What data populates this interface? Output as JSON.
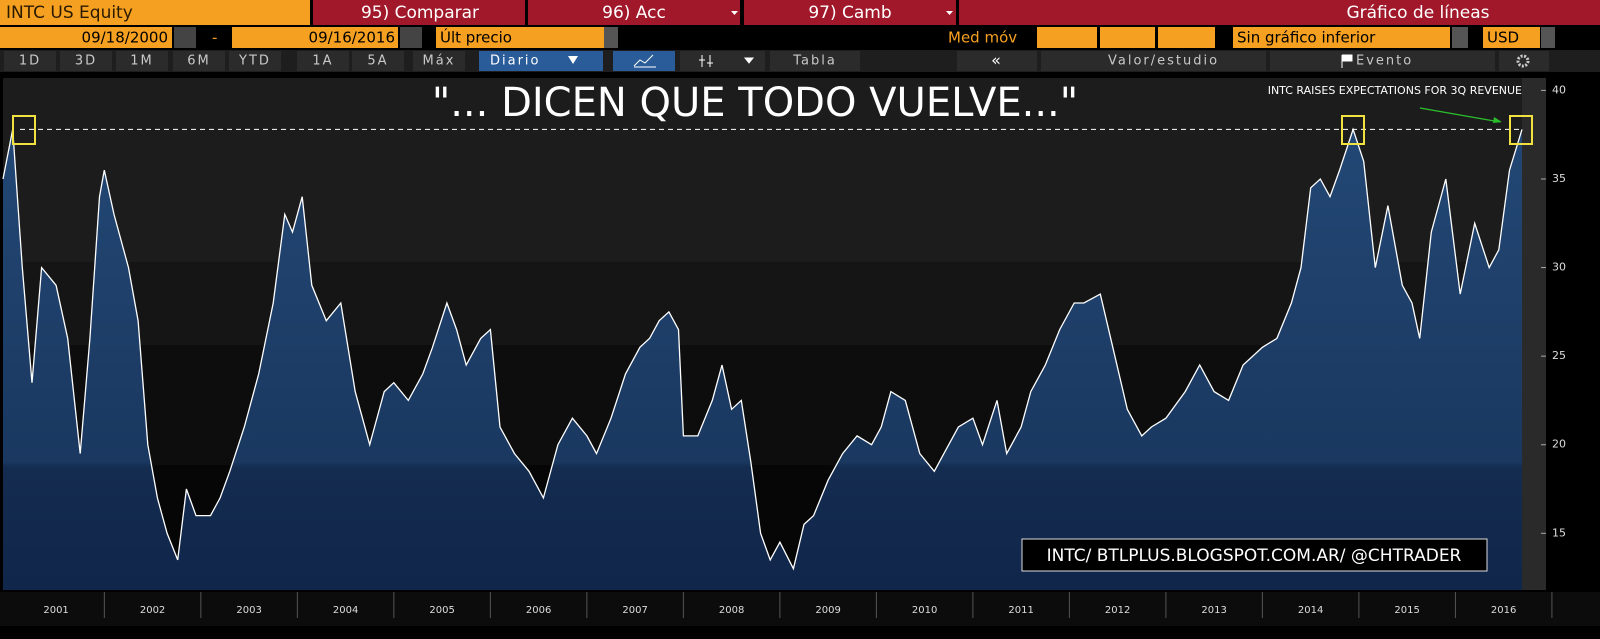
{
  "toolbar": {
    "security": "INTC US Equity",
    "buttons": [
      "95) Comparar",
      "96) Acc",
      "97) Camb"
    ],
    "chart_kind": "Gráfico de líneas",
    "start_date": "09/18/2000",
    "date_separator": "-",
    "end_date": "09/16/2016",
    "field": "Últ precio",
    "moving_average": "Med móv",
    "lower_chart": "Sin gráfico inferior",
    "currency": "USD",
    "periods": [
      "1D",
      "3D",
      "1M",
      "6M",
      "YTD",
      "1A",
      "5A",
      "Máx"
    ],
    "frequency": "Diario",
    "table": "Tabla",
    "back": "«",
    "value_study": "Valor/estudio",
    "event": "Evento"
  },
  "chart_data": {
    "type": "line",
    "title": "\"... DICEN QUE TODO VUELVE...\"",
    "annotation": "INTC RAISES EXPECTATIONS FOR 3Q REVENUE",
    "watermark": "INTC/ BTLPLUS.BLOGSPOT.COM.AR/ @CHTRADER",
    "x": [
      2000.95,
      2001.05,
      2001.15,
      2001.25,
      2001.35,
      2001.5,
      2001.62,
      2001.75,
      2001.85,
      2001.95,
      2002.0,
      2002.1,
      2002.25,
      2002.35,
      2002.45,
      2002.55,
      2002.65,
      2002.76,
      2002.85,
      2002.95,
      2003.1,
      2003.2,
      2003.3,
      2003.45,
      2003.6,
      2003.75,
      2003.87,
      2003.95,
      2004.05,
      2004.15,
      2004.3,
      2004.45,
      2004.6,
      2004.75,
      2004.9,
      2005.0,
      2005.15,
      2005.3,
      2005.4,
      2005.55,
      2005.65,
      2005.75,
      2005.9,
      2006.0,
      2006.1,
      2006.25,
      2006.4,
      2006.55,
      2006.7,
      2006.85,
      2007.0,
      2007.1,
      2007.25,
      2007.4,
      2007.55,
      2007.65,
      2007.75,
      2007.85,
      2007.95,
      2008.0,
      2008.15,
      2008.3,
      2008.4,
      2008.5,
      2008.6,
      2008.7,
      2008.8,
      2008.9,
      2009.0,
      2009.14,
      2009.25,
      2009.35,
      2009.5,
      2009.65,
      2009.8,
      2009.95,
      2010.05,
      2010.15,
      2010.3,
      2010.45,
      2010.6,
      2010.7,
      2010.85,
      2011.0,
      2011.1,
      2011.25,
      2011.35,
      2011.5,
      2011.6,
      2011.75,
      2011.9,
      2012.05,
      2012.15,
      2012.32,
      2012.45,
      2012.6,
      2012.75,
      2012.85,
      2013.0,
      2013.2,
      2013.35,
      2013.5,
      2013.65,
      2013.8,
      2014.0,
      2014.15,
      2014.3,
      2014.4,
      2014.5,
      2014.6,
      2014.7,
      2014.8,
      2014.94,
      2015.05,
      2015.17,
      2015.3,
      2015.45,
      2015.55,
      2015.63,
      2015.75,
      2015.9,
      2016.05,
      2016.2,
      2016.35,
      2016.45,
      2016.56,
      2016.69
    ],
    "values": [
      35,
      37.8,
      30,
      23.5,
      30,
      29,
      26,
      19.5,
      26,
      34,
      35.5,
      33,
      30,
      27,
      20,
      17,
      15,
      13.5,
      17.5,
      16,
      16,
      17,
      18.5,
      21,
      24,
      28,
      33,
      32,
      34,
      29,
      27,
      28,
      23,
      20,
      23,
      23.5,
      22.5,
      24,
      25.5,
      28,
      26.5,
      24.5,
      26,
      26.5,
      21,
      19.5,
      18.5,
      17,
      20,
      21.5,
      20.5,
      19.5,
      21.5,
      24,
      25.5,
      26,
      27,
      27.5,
      26.5,
      20.5,
      20.5,
      22.5,
      24.5,
      22,
      22.5,
      19,
      15,
      13.5,
      14.5,
      13,
      15.5,
      16,
      18,
      19.5,
      20.5,
      20,
      21,
      23,
      22.5,
      19.5,
      18.5,
      19.5,
      21,
      21.5,
      20,
      22.5,
      19.5,
      21,
      23,
      24.5,
      26.5,
      28,
      28,
      28.5,
      25.5,
      22,
      20.5,
      21,
      21.5,
      23,
      24.5,
      23,
      22.5,
      24.5,
      25.5,
      26,
      28,
      30,
      34.5,
      35,
      34,
      35.5,
      37.8,
      36,
      30,
      33.5,
      29,
      28,
      26,
      32,
      35,
      28.5,
      32.5,
      30,
      31,
      35.5,
      37.8
    ],
    "color": "#ffffff",
    "reference_value": 37.8,
    "xlim": [
      2000.95,
      2016.69
    ],
    "ylim": [
      11.8,
      40.7
    ],
    "xticks": [
      {
        "value": 2001.5,
        "label": "2001"
      },
      {
        "value": 2002.5,
        "label": "2002"
      },
      {
        "value": 2003.5,
        "label": "2003"
      },
      {
        "value": 2004.5,
        "label": "2004"
      },
      {
        "value": 2005.5,
        "label": "2005"
      },
      {
        "value": 2006.5,
        "label": "2006"
      },
      {
        "value": 2007.5,
        "label": "2007"
      },
      {
        "value": 2008.5,
        "label": "2008"
      },
      {
        "value": 2009.5,
        "label": "2009"
      },
      {
        "value": 2010.5,
        "label": "2010"
      },
      {
        "value": 2011.5,
        "label": "2011"
      },
      {
        "value": 2012.5,
        "label": "2012"
      },
      {
        "value": 2013.5,
        "label": "2013"
      },
      {
        "value": 2014.5,
        "label": "2014"
      },
      {
        "value": 2015.5,
        "label": "2015"
      },
      {
        "value": 2016.5,
        "label": "2016"
      }
    ],
    "yticks": [
      15,
      20,
      25,
      30,
      35,
      40
    ]
  }
}
